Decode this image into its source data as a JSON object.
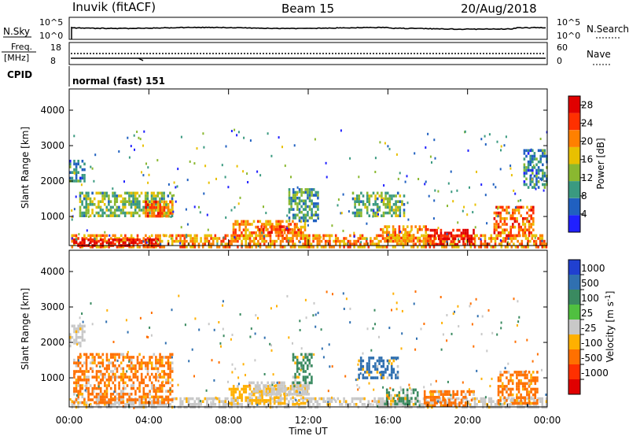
{
  "header": {
    "station": "Inuvik (fitACF)",
    "beam": "Beam 15",
    "date": "20/Aug/2018"
  },
  "sky_panel": {
    "left_label": "N.Sky",
    "right_label": "N.Search",
    "left_ticks": [
      "10^5",
      "10^0"
    ],
    "right_ticks": [
      "10^5",
      "10^0"
    ]
  },
  "freq_panel": {
    "left_label": "Freq.",
    "left_unit": "[MHz]",
    "right_label": "Nave",
    "left_ticks": [
      "18",
      "8"
    ],
    "right_ticks": [
      "60",
      "0"
    ]
  },
  "cpid_panel": {
    "label": "CPID",
    "mode": "normal (fast) 151"
  },
  "x_axis": {
    "label": "Time UT",
    "ticks": [
      "00:00",
      "04:00",
      "08:00",
      "12:00",
      "16:00",
      "20:00",
      "00:00"
    ]
  },
  "chart_data": [
    {
      "type": "heatmap",
      "title": "",
      "ylabel": "Slant Range [km]",
      "xlabel": "",
      "x_range_hours": [
        0,
        24
      ],
      "ylim": [
        180,
        4600
      ],
      "y_ticks": [
        "1000",
        "2000",
        "3000",
        "4000"
      ],
      "colorbar": {
        "label": "Power [dB]",
        "ticks": [
          "4",
          "8",
          "12",
          "16",
          "20",
          "24",
          "28"
        ],
        "range": [
          0,
          30
        ],
        "colors": [
          "#2020ff",
          "#2060c0",
          "#3a9a80",
          "#8ab830",
          "#e8c000",
          "#ff8000",
          "#ff3000",
          "#e00000"
        ]
      },
      "regions": [
        {
          "t0": 0.1,
          "t1": 24.0,
          "r0": 180,
          "r1": 500,
          "level": 20
        },
        {
          "t0": 0.2,
          "t1": 4.5,
          "r0": 200,
          "r1": 380,
          "level": 28
        },
        {
          "t0": 0.5,
          "t1": 5.2,
          "r0": 1000,
          "r1": 1700,
          "level": 12
        },
        {
          "t0": 3.8,
          "t1": 5.2,
          "r0": 1050,
          "r1": 1450,
          "level": 22
        },
        {
          "t0": 0.0,
          "t1": 0.8,
          "r0": 2000,
          "r1": 2600,
          "level": 8
        },
        {
          "t0": 8.2,
          "t1": 11.8,
          "r0": 380,
          "r1": 900,
          "level": 20
        },
        {
          "t0": 9.5,
          "t1": 11.5,
          "r0": 550,
          "r1": 750,
          "level": 24
        },
        {
          "t0": 11.0,
          "t1": 12.5,
          "r0": 900,
          "r1": 1800,
          "level": 10
        },
        {
          "t0": 14.2,
          "t1": 16.8,
          "r0": 1000,
          "r1": 1700,
          "level": 12
        },
        {
          "t0": 15.6,
          "t1": 18.0,
          "r0": 350,
          "r1": 750,
          "level": 20
        },
        {
          "t0": 18.0,
          "t1": 20.3,
          "r0": 180,
          "r1": 650,
          "level": 28
        },
        {
          "t0": 21.3,
          "t1": 23.3,
          "r0": 500,
          "r1": 1300,
          "level": 22
        },
        {
          "t0": 22.8,
          "t1": 24.0,
          "r0": 1800,
          "r1": 2900,
          "level": 8
        }
      ]
    },
    {
      "type": "heatmap",
      "title": "",
      "ylabel": "Slant Range [km]",
      "xlabel": "",
      "x_range_hours": [
        0,
        24
      ],
      "ylim": [
        180,
        4600
      ],
      "y_ticks": [
        "1000",
        "2000",
        "3000",
        "4000"
      ],
      "colorbar": {
        "label": "Velocity [m s^-1]",
        "ticks": [
          "1000",
          "500",
          "100",
          "25",
          "-25",
          "-100",
          "-500",
          "-1000"
        ],
        "colors": [
          "#2040d0",
          "#3070b0",
          "#3a8a60",
          "#50c040",
          "#c8c8c8",
          "#ffb000",
          "#ff7000",
          "#ff3000",
          "#e00000"
        ]
      },
      "regions": [
        {
          "t0": 0.1,
          "t1": 24.0,
          "r0": 180,
          "r1": 450,
          "class": "-25"
        },
        {
          "t0": 0.2,
          "t1": 5.2,
          "r0": 300,
          "r1": 1700,
          "class": "-500"
        },
        {
          "t0": 0.0,
          "t1": 0.8,
          "r0": 1900,
          "r1": 2500,
          "class": "25"
        },
        {
          "t0": 8.0,
          "t1": 12.0,
          "r0": 300,
          "r1": 800,
          "class": "-100"
        },
        {
          "t0": 9.0,
          "t1": 12.0,
          "r0": 550,
          "r1": 900,
          "class": "25"
        },
        {
          "t0": 11.2,
          "t1": 12.2,
          "r0": 900,
          "r1": 1700,
          "class": "100"
        },
        {
          "t0": 14.5,
          "t1": 16.5,
          "r0": 1000,
          "r1": 1600,
          "class": "500"
        },
        {
          "t0": 15.8,
          "t1": 17.5,
          "r0": 300,
          "r1": 700,
          "class": "100"
        },
        {
          "t0": 17.8,
          "t1": 20.3,
          "r0": 180,
          "r1": 650,
          "class": "-500"
        },
        {
          "t0": 21.5,
          "t1": 23.5,
          "r0": 300,
          "r1": 1200,
          "class": "-500"
        }
      ]
    }
  ]
}
